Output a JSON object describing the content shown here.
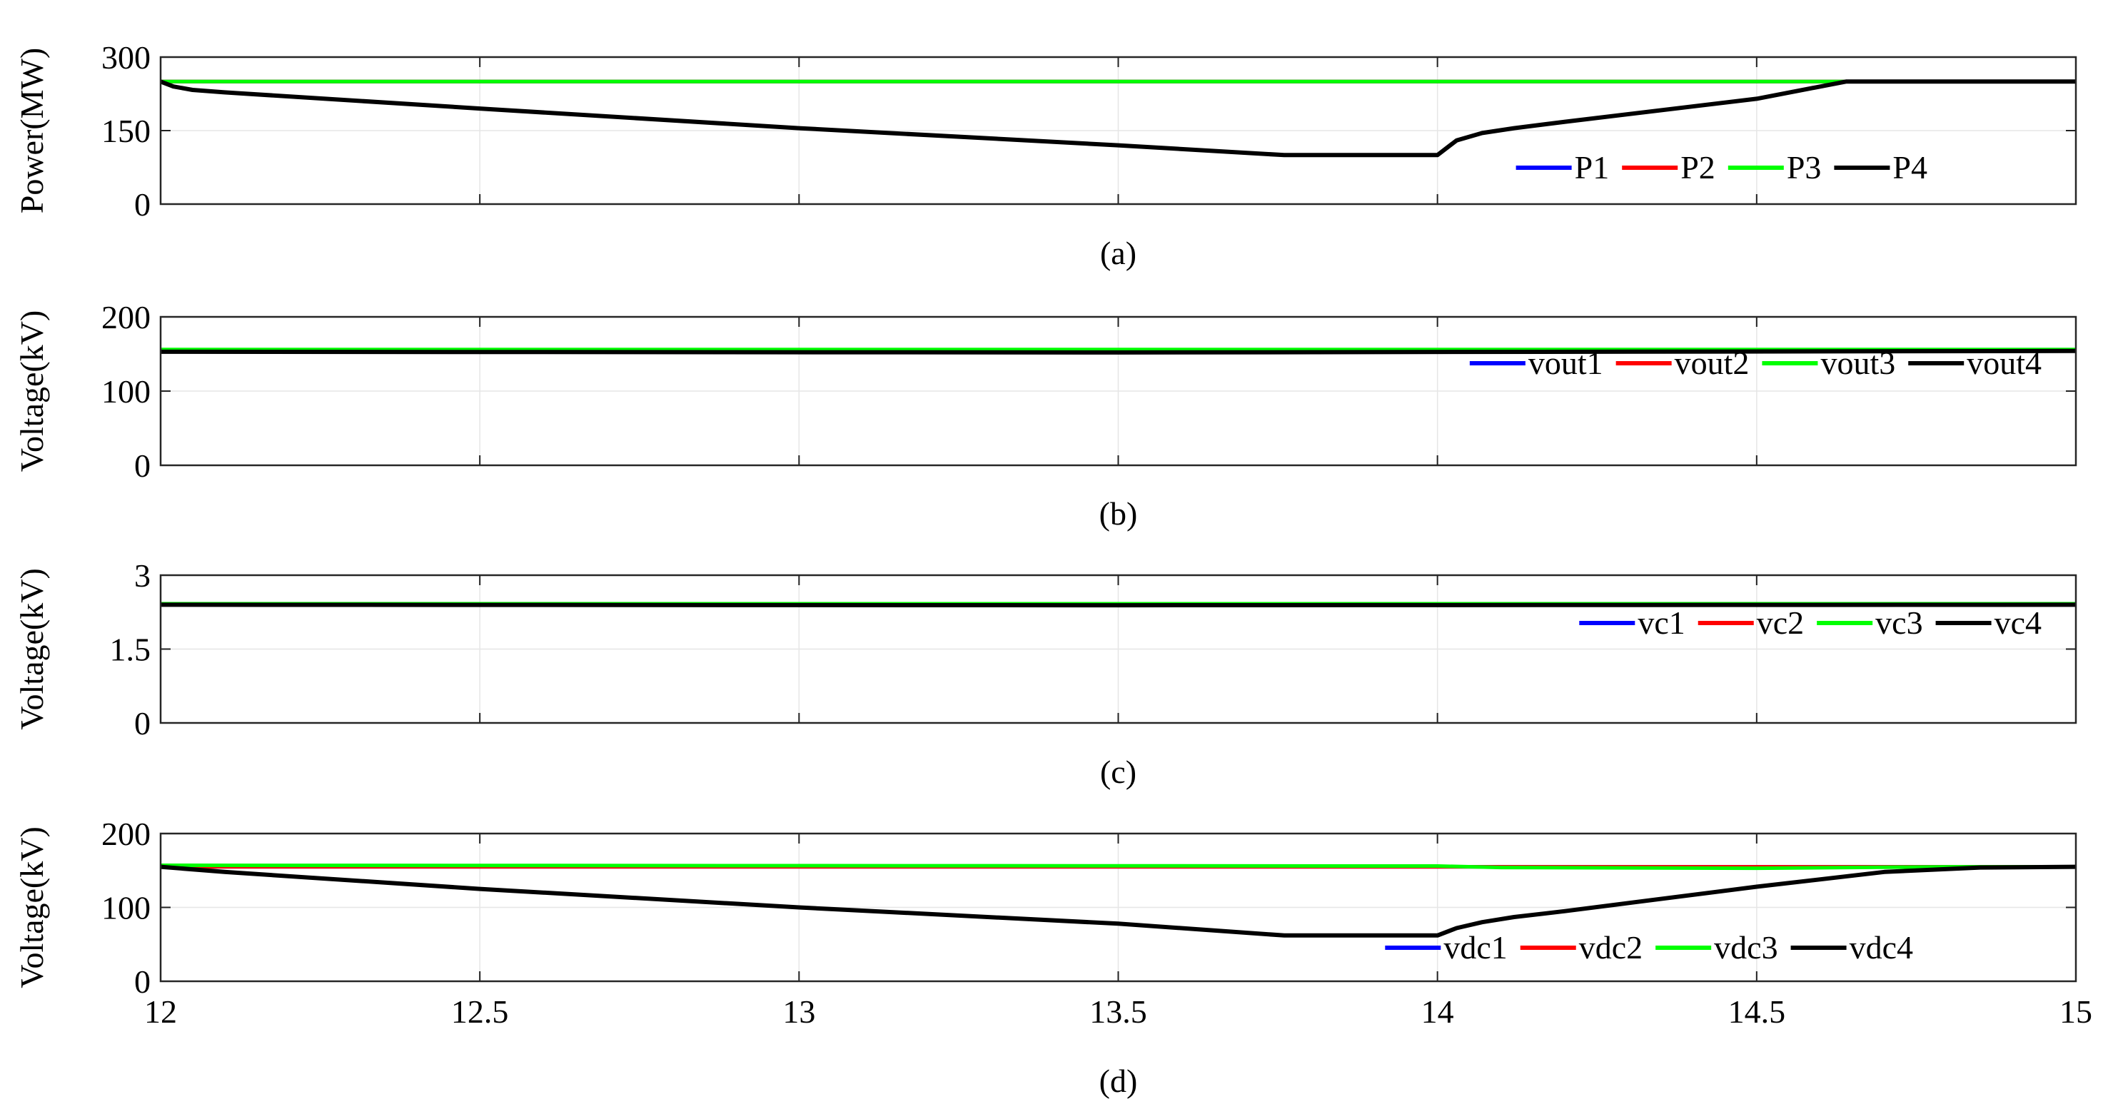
{
  "chart_data": [
    {
      "type": "line",
      "caption": "(a)",
      "ylabel": "Power(MW)",
      "xlim": [
        12,
        15
      ],
      "ylim": [
        0,
        300
      ],
      "yticks": [
        "0",
        "150",
        "300"
      ],
      "xticks": [],
      "grid": true,
      "legend_position": "bottom-right",
      "series": [
        {
          "name": "P1",
          "color": "#0000ff",
          "x": [
            12,
            15
          ],
          "y": [
            250,
            250
          ]
        },
        {
          "name": "P2",
          "color": "#ff0000",
          "x": [
            12,
            15
          ],
          "y": [
            250,
            250
          ]
        },
        {
          "name": "P3",
          "color": "#00ff00",
          "x": [
            12,
            15
          ],
          "y": [
            250,
            250
          ]
        },
        {
          "name": "P4",
          "color": "#000000",
          "x": [
            12,
            12.02,
            12.05,
            12.1,
            12.5,
            13,
            13.5,
            13.76,
            14,
            14.03,
            14.07,
            14.12,
            14.2,
            14.5,
            14.64,
            15
          ],
          "y": [
            250,
            240,
            233,
            228,
            195,
            155,
            120,
            100,
            100,
            130,
            145,
            155,
            168,
            215,
            250,
            250
          ]
        }
      ]
    },
    {
      "type": "line",
      "caption": "(b)",
      "ylabel": "Voltage(kV)",
      "xlim": [
        12,
        15
      ],
      "ylim": [
        0,
        200
      ],
      "yticks": [
        "0",
        "100",
        "200"
      ],
      "xticks": [],
      "grid": true,
      "legend_position": "bottom-right",
      "series": [
        {
          "name": "vout1",
          "color": "#0000ff",
          "x": [
            12,
            15
          ],
          "y": [
            155,
            155
          ]
        },
        {
          "name": "vout2",
          "color": "#ff0000",
          "x": [
            12,
            15
          ],
          "y": [
            155,
            155
          ]
        },
        {
          "name": "vout3",
          "color": "#00ff00",
          "x": [
            12,
            15
          ],
          "y": [
            156,
            156
          ]
        },
        {
          "name": "vout4",
          "color": "#000000",
          "x": [
            12,
            13.5,
            15
          ],
          "y": [
            153,
            152,
            154
          ]
        }
      ]
    },
    {
      "type": "line",
      "caption": "(c)",
      "ylabel": "Voltage(kV)",
      "xlim": [
        12,
        15
      ],
      "ylim": [
        0,
        3
      ],
      "yticks": [
        "0",
        "1.5",
        "3"
      ],
      "xticks": [],
      "grid": true,
      "legend_position": "bottom-right",
      "series": [
        {
          "name": "vc1",
          "color": "#0000ff",
          "x": [
            12,
            15
          ],
          "y": [
            2.4,
            2.4
          ]
        },
        {
          "name": "vc2",
          "color": "#ff0000",
          "x": [
            12,
            15
          ],
          "y": [
            2.4,
            2.4
          ]
        },
        {
          "name": "vc3",
          "color": "#00ff00",
          "x": [
            12,
            15
          ],
          "y": [
            2.42,
            2.42
          ]
        },
        {
          "name": "vc4",
          "color": "#000000",
          "x": [
            12,
            13.5,
            15
          ],
          "y": [
            2.4,
            2.39,
            2.4
          ]
        }
      ]
    },
    {
      "type": "line",
      "caption": "(d)",
      "ylabel": "Voltage(kV)",
      "xlim": [
        12,
        15
      ],
      "ylim": [
        0,
        200
      ],
      "yticks": [
        "0",
        "100",
        "200"
      ],
      "xticks": [
        "12",
        "12.5",
        "13",
        "13.5",
        "14",
        "14.5",
        "15"
      ],
      "grid": true,
      "legend_position": "bottom-right",
      "series": [
        {
          "name": "vdc1",
          "color": "#0000ff",
          "x": [
            12,
            15
          ],
          "y": [
            155,
            155
          ]
        },
        {
          "name": "vdc2",
          "color": "#ff0000",
          "x": [
            12,
            15
          ],
          "y": [
            155,
            155
          ]
        },
        {
          "name": "vdc3",
          "color": "#00ff00",
          "x": [
            12,
            14,
            14.1,
            14.5,
            14.8,
            15
          ],
          "y": [
            157,
            156,
            154,
            153,
            155,
            155
          ]
        },
        {
          "name": "vdc4",
          "color": "#000000",
          "x": [
            12,
            12.1,
            12.5,
            13,
            13.5,
            13.76,
            14,
            14.03,
            14.07,
            14.12,
            14.2,
            14.5,
            14.7,
            14.85,
            15
          ],
          "y": [
            155,
            148,
            125,
            100,
            78,
            62,
            62,
            72,
            80,
            87,
            95,
            128,
            148,
            154,
            155
          ]
        }
      ]
    }
  ]
}
